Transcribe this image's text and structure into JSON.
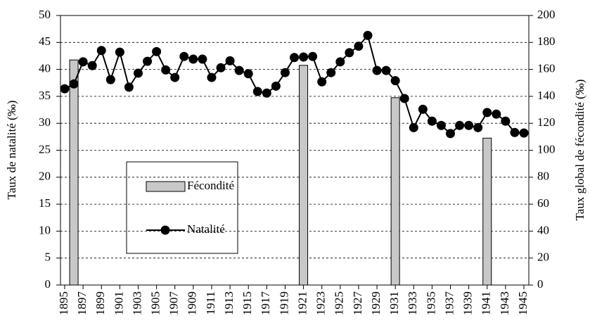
{
  "chart_data": {
    "type": "combo",
    "ylabel": "Taux de natalité (‰)",
    "y2label": "Taux global de fécondité (‰)",
    "xlim": [
      1895,
      1945
    ],
    "xticks": [
      1895,
      1897,
      1899,
      1901,
      1903,
      1905,
      1907,
      1909,
      1911,
      1913,
      1915,
      1917,
      1919,
      1921,
      1923,
      1925,
      1927,
      1929,
      1931,
      1933,
      1935,
      1937,
      1939,
      1941,
      1943,
      1945
    ],
    "ylim": [
      0,
      50
    ],
    "yticks": [
      0,
      5,
      10,
      15,
      20,
      25,
      30,
      35,
      40,
      45,
      50
    ],
    "y2lim": [
      0,
      200
    ],
    "y2ticks": [
      0,
      20,
      40,
      60,
      80,
      100,
      120,
      140,
      160,
      180,
      200
    ],
    "grid": true,
    "series": [
      {
        "name": "Fécondité",
        "kind": "bar",
        "axis": "y2",
        "color": "#c8c8c8",
        "x": [
          1896,
          1921,
          1931,
          1941
        ],
        "values": [
          167,
          163,
          139,
          109
        ]
      },
      {
        "name": "Natalité",
        "kind": "line",
        "color": "#000000",
        "x": [
          1895,
          1896,
          1897,
          1898,
          1899,
          1900,
          1901,
          1902,
          1903,
          1904,
          1905,
          1906,
          1907,
          1908,
          1909,
          1910,
          1911,
          1912,
          1913,
          1914,
          1915,
          1916,
          1917,
          1918,
          1919,
          1920,
          1921,
          1922,
          1923,
          1924,
          1925,
          1926,
          1927,
          1928,
          1929,
          1930,
          1931,
          1932,
          1933,
          1934,
          1935,
          1936,
          1937,
          1938,
          1939,
          1940,
          1941,
          1942,
          1943,
          1944,
          1945
        ],
        "values": [
          36.4,
          37.3,
          41.4,
          40.7,
          43.5,
          38.1,
          43.2,
          36.7,
          39.3,
          41.5,
          43.3,
          39.9,
          38.5,
          42.4,
          41.9,
          41.9,
          38.5,
          40.3,
          41.6,
          39.8,
          39.2,
          35.9,
          35.6,
          36.9,
          39.4,
          42.2,
          42.3,
          42.4,
          37.7,
          39.4,
          41.4,
          43.1,
          44.3,
          46.3,
          39.8,
          39.8,
          37.9,
          34.6,
          29.2,
          32.6,
          30.4,
          29.6,
          28.1,
          29.6,
          29.6,
          29.2,
          32.0,
          31.7,
          30.4,
          28.3,
          28.2
        ]
      }
    ]
  }
}
